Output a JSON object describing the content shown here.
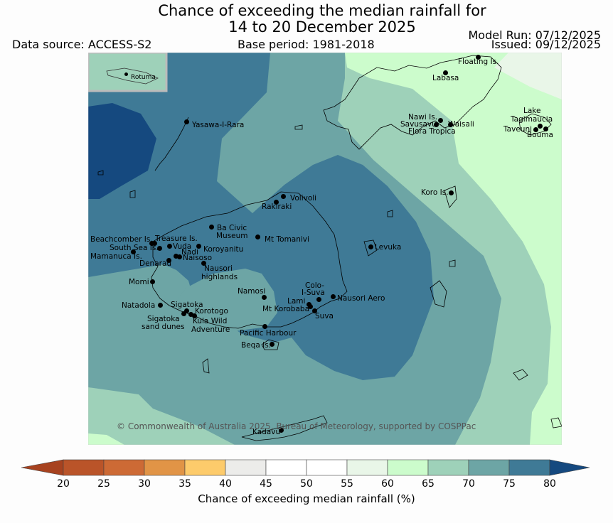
{
  "title": {
    "line1": "Chance of exceeding the median rainfall for",
    "line2": "14 to 20 December 2025"
  },
  "header": {
    "model_run": "Model Run: 07/12/2025",
    "issued": "Issued: 09/12/2025",
    "data_source": "Data source: ACCESS-S2",
    "base_period": "Base period: 1981-2018"
  },
  "inset": {
    "label": "Rotuma"
  },
  "places": [
    "Floating Is.",
    "Labasa",
    "Nawi Is.",
    "Savusavu",
    "Waisali",
    "Flora Tropica",
    "Lake",
    "Tagimaucia",
    "Taveuni",
    "Bouma",
    "Yasawa-I-Rara",
    "Koro Is.",
    "Volivoli",
    "Rakiraki",
    "Ba Civic",
    "Museum",
    "Mt Tomanivi",
    "Beachcomber Is.",
    "Treasure Is.",
    "South Sea Is.",
    "Vuda",
    "Nadi",
    "Koroyanitu",
    "Mamanuca Is.",
    "Naisoso",
    "Denarau",
    "Levuka",
    "Nausori",
    "highlands",
    "Momi",
    "Namosi",
    "Colo-",
    "I-Suva",
    "Lami",
    "Nausori Aero",
    "Mt Korobaba",
    "Suva",
    "Natadola",
    "Sigatoka",
    "Korotogo",
    "Sigatoka",
    "sand dunes",
    "Kula Wild",
    "Adventure",
    "Pacific Harbour",
    "Beqa Is.",
    "Kadavu"
  ],
  "copyright": "© Commonwealth of Australia 2025, Bureau of Meteorology, supported by COSPPac",
  "colorbar": {
    "title": "Chance of exceeding median rainfall (%)",
    "ticks": [
      "20",
      "25",
      "30",
      "35",
      "40",
      "45",
      "50",
      "55",
      "60",
      "65",
      "70",
      "75",
      "80"
    ],
    "colors": [
      "#a7421f",
      "#ba5429",
      "#cd6a35",
      "#e19446",
      "#fdcb6b",
      "#ececea",
      "#ffffff",
      "#ffffff",
      "#e9f6e8",
      "#ccfccc",
      "#9ed1b9",
      "#6da5a5",
      "#3f7a96",
      "#15497f"
    ]
  }
}
